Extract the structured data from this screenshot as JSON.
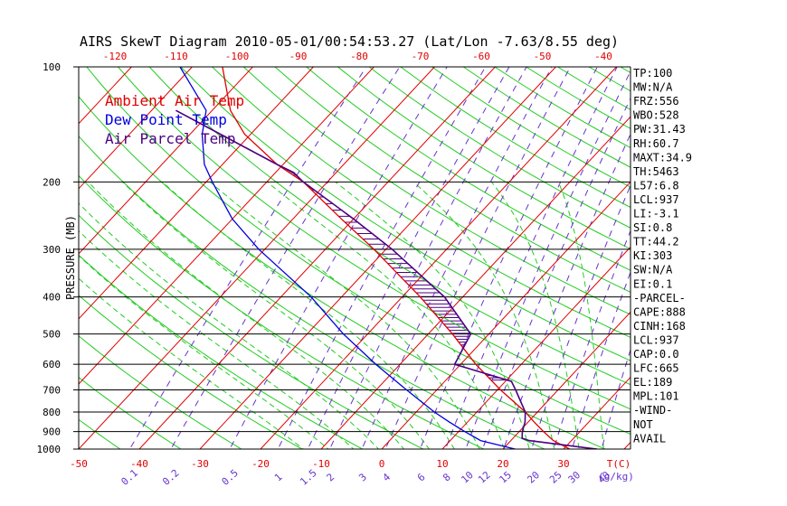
{
  "chart_data": {
    "type": "skewt",
    "title": "AIRS SkewT Diagram 2010-05-01/00:54:53.27 (Lat/Lon -7.63/8.55 deg)",
    "ylabel": "PRESSURE (MB)",
    "pressure_ticks": [
      "100",
      "200",
      "300",
      "400",
      "500",
      "600",
      "700",
      "800",
      "900",
      "1000"
    ],
    "bottom_temp_ticks": [
      "-50",
      "-40",
      "-30",
      "-20",
      "-10",
      "0",
      "10",
      "20",
      "30"
    ],
    "bottom_temp_unit": "T(C)",
    "top_temp_ticks": [
      "-120",
      "-110",
      "-100",
      "-90",
      "-80",
      "-70",
      "-60",
      "-50",
      "-40"
    ],
    "mixing_ratio_ticks": [
      "0.1",
      "0.2",
      "0.5",
      "1",
      "1.5",
      "2",
      "3",
      "4",
      "6",
      "8",
      "10",
      "12",
      "15",
      "20",
      "25",
      "30",
      "40"
    ],
    "mixing_ratio_unit": "(g/kg)",
    "legend": {
      "ambient": "Ambient Air Temp",
      "dewpoint": "Dew Point Temp",
      "parcel": "Air Parcel Temp"
    },
    "stats": [
      "TP:100",
      "MW:N/A",
      "FRZ:556",
      "WBO:528",
      "PW:31.43",
      "RH:60.7",
      "MAXT:34.9",
      "TH:5463",
      "L57:6.8",
      "LCL:937",
      "LI:-3.1",
      "SI:0.8",
      "TT:44.2",
      "KI:303",
      "SW:N/A",
      "EI:0.1",
      "-PARCEL-",
      "CAPE:888",
      "CINH:168",
      "LCL:937",
      "CAP:0.0",
      "LFC:665",
      "EL:189",
      "MPL:101",
      "-WIND-",
      "NOT",
      "AVAIL"
    ],
    "series": [
      {
        "key": "ambient",
        "p": [
          1000,
          950,
          900,
          850,
          800,
          700,
          600,
          500,
          400,
          300,
          250,
          200,
          180,
          150,
          130,
          100
        ],
        "t": [
          31,
          27,
          24,
          21,
          18,
          10.5,
          2.5,
          -6,
          -17,
          -32,
          -42,
          -54,
          -61,
          -71,
          -77,
          -85
        ]
      },
      {
        "key": "dewpoint",
        "p": [
          1000,
          950,
          900,
          850,
          800,
          700,
          600,
          500,
          400,
          300,
          250,
          200,
          180,
          150,
          130,
          100
        ],
        "t": [
          22,
          15,
          11,
          7,
          3,
          -5,
          -14,
          -24,
          -35,
          -51,
          -60,
          -69,
          -73,
          -78,
          -81,
          -92
        ]
      },
      {
        "key": "parcel",
        "p": [
          1000,
          990,
          950,
          937,
          900,
          850,
          800,
          700,
          665,
          600,
          500,
          400,
          300,
          250,
          200,
          189,
          180,
          150,
          130
        ],
        "t": [
          35.5,
          33,
          23,
          21.5,
          20.5,
          19.5,
          18,
          13,
          11,
          -1,
          -3,
          -13,
          -29,
          -40,
          -54,
          -57,
          -61,
          -75,
          -86
        ]
      }
    ]
  }
}
